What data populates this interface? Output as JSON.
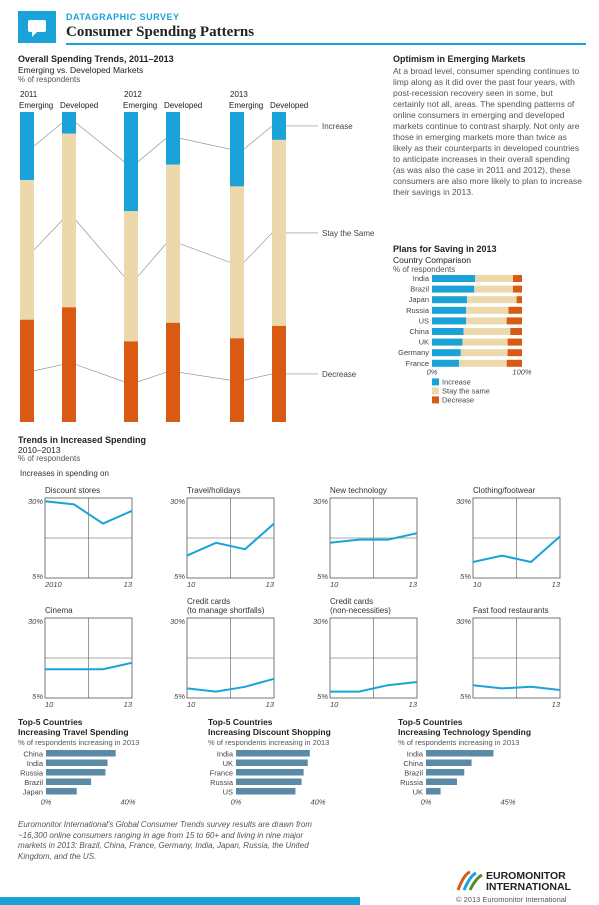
{
  "header": {
    "kicker": "DATAGRAPHIC SURVEY",
    "title": "Consumer Spending Patterns",
    "icon": "speech-bubble-icon",
    "accent": "#1aa3d9"
  },
  "colors": {
    "increase": "#1aa3d9",
    "stay": "#ecd9ab",
    "decrease": "#d95a12",
    "line": "#1aa3d9",
    "bar": "#5a8aa6"
  },
  "overall": {
    "title": "Overall Spending Trends, 2011–2013",
    "subtitle": "Emerging vs. Developed Markets",
    "unit": "% of respondents",
    "labels": {
      "increase": "Increase",
      "stay": "Stay the Same",
      "decrease": "Decrease"
    },
    "years": [
      {
        "year": "2011",
        "groups": [
          {
            "name": "Emerging",
            "inc": 22,
            "stay": 45,
            "dec": 33
          },
          {
            "name": "Developed",
            "inc": 7,
            "stay": 56,
            "dec": 37
          }
        ]
      },
      {
        "year": "2012",
        "groups": [
          {
            "name": "Emerging",
            "inc": 32,
            "stay": 42,
            "dec": 26
          },
          {
            "name": "Developed",
            "inc": 17,
            "stay": 51,
            "dec": 32
          }
        ]
      },
      {
        "year": "2013",
        "groups": [
          {
            "name": "Emerging",
            "inc": 24,
            "stay": 49,
            "dec": 27
          },
          {
            "name": "Developed",
            "inc": 9,
            "stay": 60,
            "dec": 31
          }
        ]
      }
    ]
  },
  "optimism": {
    "title": "Optimism in Emerging Markets",
    "text": "At a broad level, consumer spending continues to limp along as it did over the past four years, with post-recession recovery seen in some, but certainly not all, areas. The spending patterns of online consumers in emerging and developed markets continue to contrast sharply. Not only are those in emerging markets more than twice as likely as their counterparts in developed countries to anticipate increases in their overall spending (as was also the case in 2011 and 2012), these consumers are also more likely to plan to increase their savings in 2013."
  },
  "saving": {
    "title": "Plans for Saving in 2013",
    "subtitle": "Country Comparison",
    "unit": "% of respondents",
    "axis": [
      "0%",
      "100%"
    ],
    "legend": [
      "Increase",
      "Stay the same",
      "Decrease"
    ],
    "countries": [
      {
        "name": "India",
        "inc": 48,
        "stay": 42,
        "dec": 10
      },
      {
        "name": "Brazil",
        "inc": 47,
        "stay": 43,
        "dec": 10
      },
      {
        "name": "Japan",
        "inc": 39,
        "stay": 55,
        "dec": 6
      },
      {
        "name": "Russia",
        "inc": 38,
        "stay": 47,
        "dec": 15
      },
      {
        "name": "US",
        "inc": 38,
        "stay": 45,
        "dec": 17
      },
      {
        "name": "China",
        "inc": 35,
        "stay": 52,
        "dec": 13
      },
      {
        "name": "UK",
        "inc": 34,
        "stay": 50,
        "dec": 16
      },
      {
        "name": "Germany",
        "inc": 32,
        "stay": 52,
        "dec": 16
      },
      {
        "name": "France",
        "inc": 30,
        "stay": 53,
        "dec": 17
      }
    ]
  },
  "trends": {
    "title": "Trends in Increased Spending",
    "subtitle": "2010–2013",
    "unit": "% of respondents",
    "lead": "Increases in spending on",
    "ymax": "30%",
    "ymin": "5%",
    "panels": [
      {
        "title": "Discount stores",
        "x0": "2010",
        "x1": "13",
        "values": [
          29,
          28,
          22,
          26
        ]
      },
      {
        "title": "Travel/holidays",
        "x0": "10",
        "x1": "13",
        "values": [
          12,
          16,
          14,
          22
        ]
      },
      {
        "title": "New technology",
        "x0": "10",
        "x1": "13",
        "values": [
          16,
          17,
          17,
          19
        ]
      },
      {
        "title": "Clothing/footwear",
        "x0": "10",
        "x1": "13",
        "values": [
          10,
          12,
          10,
          18
        ]
      },
      {
        "title": "Cinema",
        "x0": "10",
        "x1": "13",
        "values": [
          14,
          14,
          14,
          16
        ]
      },
      {
        "title": "Credit cards\n(to manage shortfalls)",
        "x0": "10",
        "x1": "13",
        "values": [
          8,
          7,
          8.5,
          11
        ]
      },
      {
        "title": "Credit cards\n(non-necessities)",
        "x0": "10",
        "x1": "13",
        "values": [
          7,
          7,
          9,
          10
        ]
      },
      {
        "title": "Fast food restaurants",
        "x0": "",
        "x1": "13",
        "values": [
          9,
          8,
          8.5,
          7.5
        ]
      }
    ]
  },
  "top5": [
    {
      "title": "Top-5 Countries",
      "title2": "Increasing Travel Spending",
      "unit": "% of respondents increasing in 2013",
      "axis": [
        "0%",
        "40%"
      ],
      "max": 40,
      "items": [
        {
          "name": "China",
          "value": 34
        },
        {
          "name": "India",
          "value": 30
        },
        {
          "name": "Russia",
          "value": 29
        },
        {
          "name": "Brazil",
          "value": 22
        },
        {
          "name": "Japan",
          "value": 15
        }
      ]
    },
    {
      "title": "Top-5 Countries",
      "title2": "Increasing Discount Shopping",
      "unit": "% of respondents increasing in 2013",
      "axis": [
        "0%",
        "40%"
      ],
      "max": 40,
      "items": [
        {
          "name": "India",
          "value": 36
        },
        {
          "name": "UK",
          "value": 35
        },
        {
          "name": "France",
          "value": 33
        },
        {
          "name": "Russia",
          "value": 32
        },
        {
          "name": "US",
          "value": 29
        }
      ]
    },
    {
      "title": "Top-5 Countries",
      "title2": "Increasing Technology Spending",
      "unit": "% of respondents increasing in 2013",
      "axis": [
        "0%",
        "45%"
      ],
      "max": 45,
      "items": [
        {
          "name": "India",
          "value": 37
        },
        {
          "name": "China",
          "value": 25
        },
        {
          "name": "Brazil",
          "value": 21
        },
        {
          "name": "Russia",
          "value": 17
        },
        {
          "name": "UK",
          "value": 8
        }
      ]
    }
  ],
  "footer": {
    "note": "Euromonitor International's Global Consumer Trends survey results are drawn from ~16,300 online consumers ranging in age from 15 to 60+ and living in nine major markets in 2013: Brazil, China, France, Germany, India, Japan, Russia, the United Kingdom, and the US.",
    "logo1": "EUROMONITOR",
    "logo2": "INTERNATIONAL",
    "copyright": "© 2013 Euromonitor International"
  }
}
